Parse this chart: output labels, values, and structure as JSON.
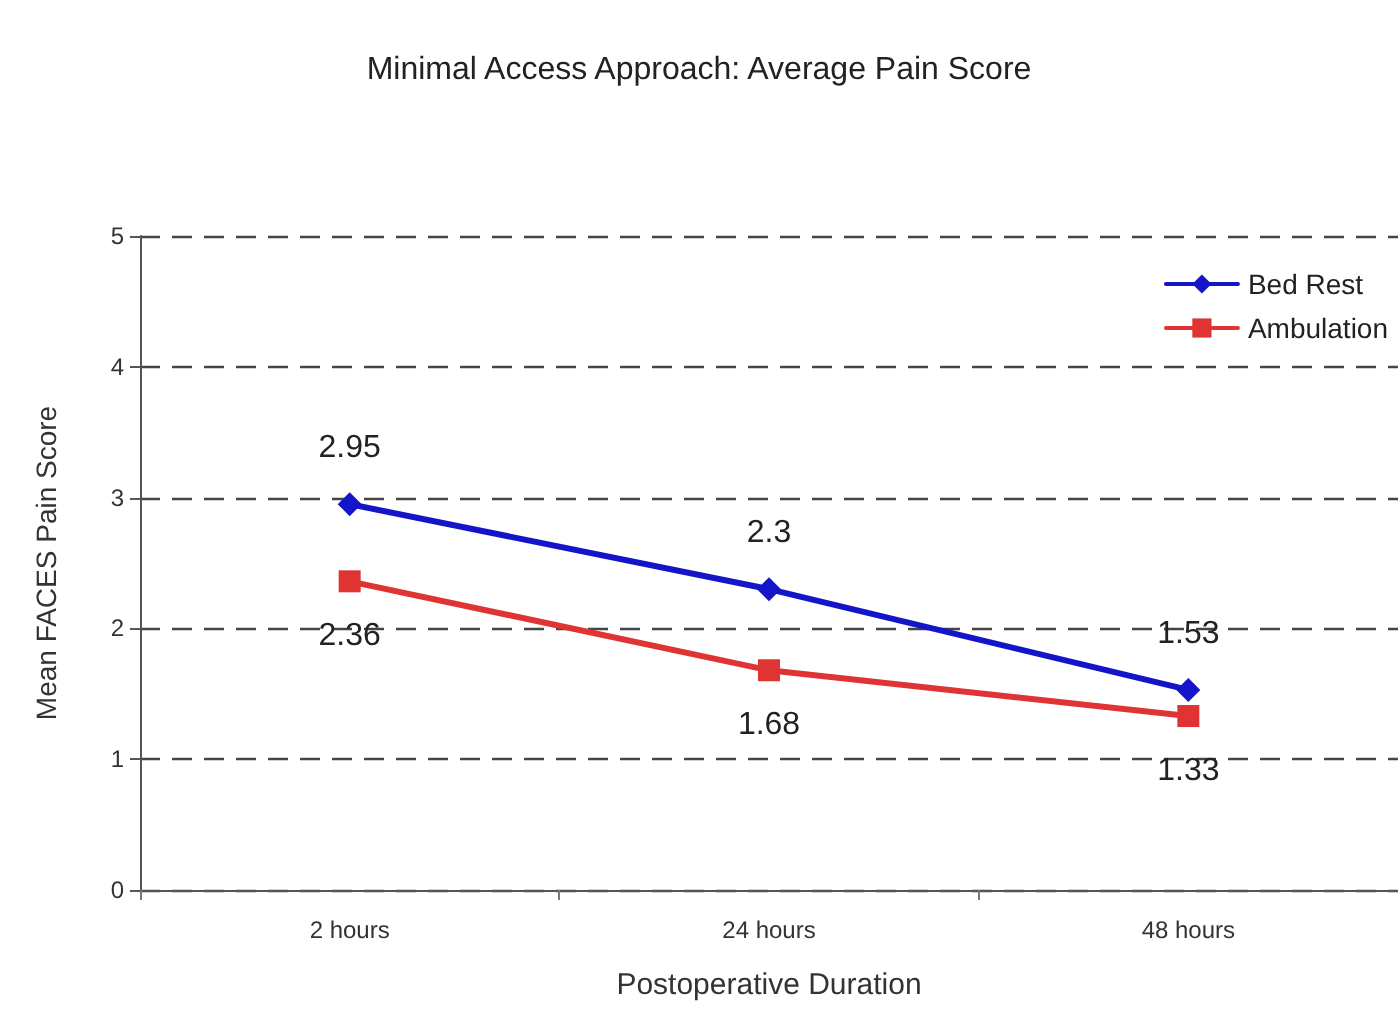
{
  "chart_data": {
    "type": "line",
    "title": "Minimal Access Approach: Average Pain Score",
    "xlabel": "Postoperative Duration",
    "ylabel": "Mean FACES Pain Score",
    "categories": [
      "2 hours",
      "24 hours",
      "48 hours"
    ],
    "series": [
      {
        "name": "Bed Rest",
        "color": "#1414c8",
        "values": [
          2.95,
          2.3,
          1.53
        ],
        "marker": "diamond"
      },
      {
        "name": "Ambulation",
        "color": "#e03434",
        "values": [
          2.36,
          1.68,
          1.33
        ],
        "marker": "square"
      }
    ],
    "ylim": [
      0,
      5
    ],
    "yticks": [
      0,
      1,
      2,
      3,
      4,
      5
    ],
    "grid": "y",
    "line_style": "solid",
    "legend": "top right",
    "data_labels": true
  }
}
